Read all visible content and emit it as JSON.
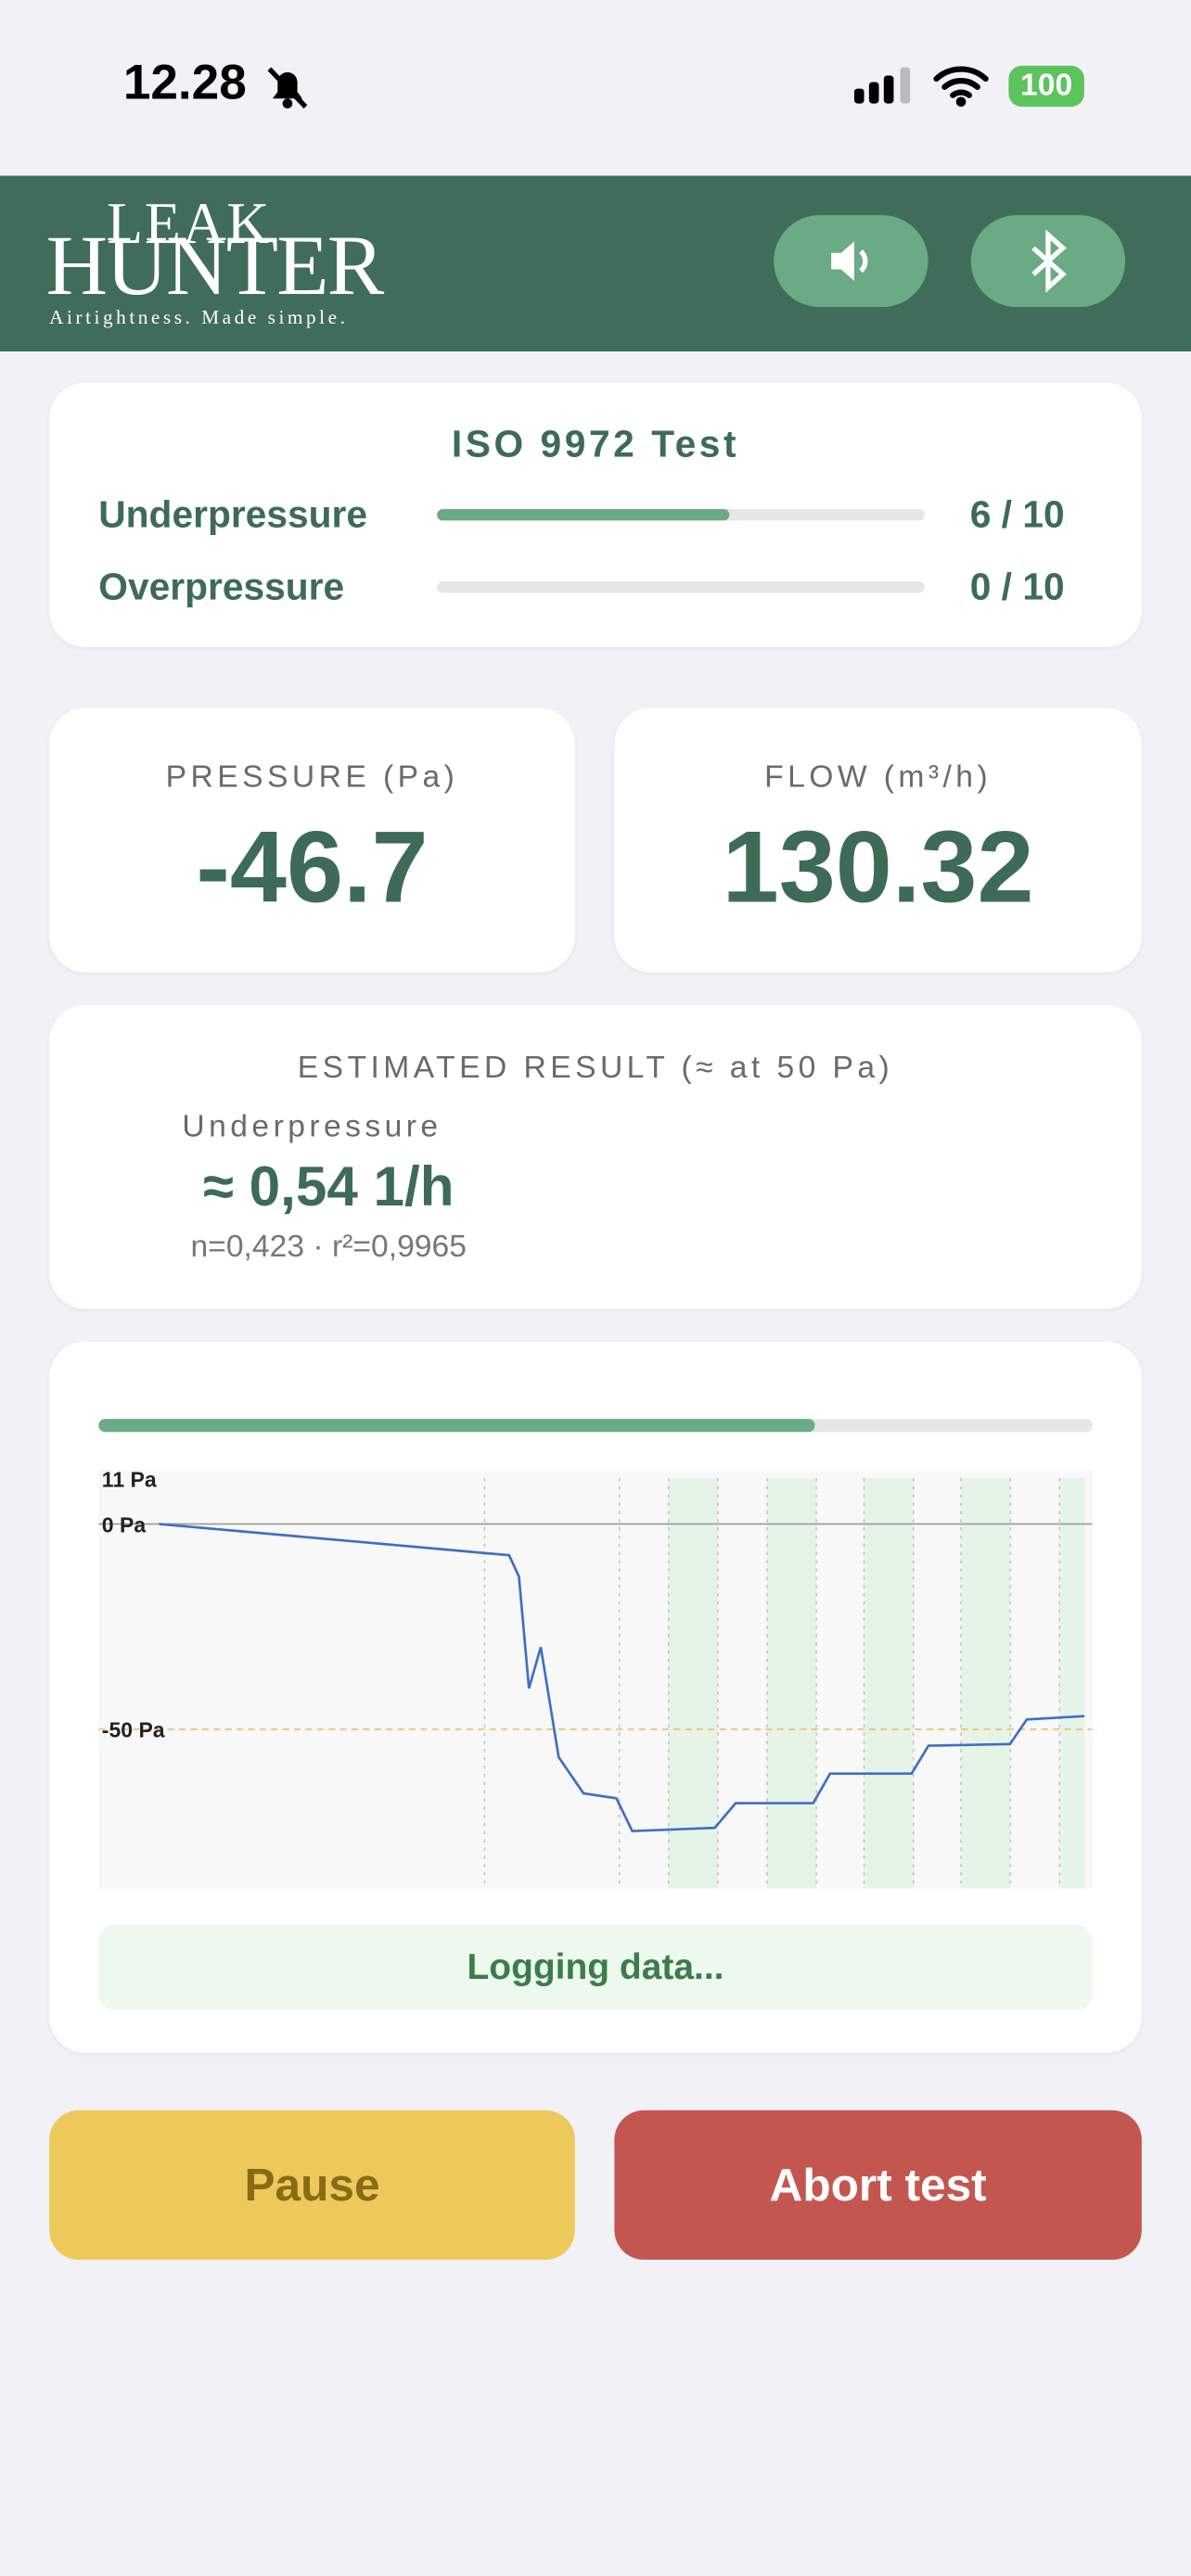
{
  "status_bar": {
    "time": "12.28",
    "battery": "100"
  },
  "header": {
    "logo_top": "LEAK",
    "logo_bottom": "HUNTER",
    "tagline": "Airtightness. Made simple."
  },
  "test": {
    "title": "ISO 9972 Test",
    "stages": [
      {
        "label": "Underpressure",
        "count": "6 / 10",
        "done": 6,
        "total": 10
      },
      {
        "label": "Overpressure",
        "count": "0 / 10",
        "done": 0,
        "total": 10
      }
    ]
  },
  "pressure": {
    "label": "PRESSURE (Pa)",
    "value": "-46.7"
  },
  "flow": {
    "label": "FLOW (m³/h)",
    "value": "130.32"
  },
  "result": {
    "title": "ESTIMATED RESULT (≈ at 50 Pa)",
    "mode": "Underpressure",
    "value": "≈ 0,54 1/h",
    "fit": "n=0,423 · r²=0,9965"
  },
  "chart": {
    "progress": 72,
    "xlim": [
      0,
      100
    ],
    "ylim": [
      -88.8,
      13.2
    ],
    "yticks": [
      {
        "value": 11,
        "label": "11 Pa",
        "line": "none"
      },
      {
        "value": 0,
        "label": "0 Pa",
        "line": "solid"
      },
      {
        "value": -50,
        "label": "-50 Pa",
        "line": "dashed"
      }
    ],
    "x": [
      6.1,
      41.3,
      42.3,
      43.3,
      44.5,
      46.3,
      48.8,
      52.1,
      53.7,
      62,
      64.1,
      71.9,
      73.6,
      81.8,
      83.5,
      91.7,
      93.4,
      99.2
    ],
    "values": [
      0,
      -7.6,
      -12.8,
      -40,
      -30,
      -56.8,
      -65.6,
      -66.8,
      -74.8,
      -74,
      -68,
      -68,
      -60.8,
      -60.8,
      -54,
      -53.6,
      -47.6,
      -46.8
    ],
    "color": "#3f6fc4"
  },
  "status": "Logging data...",
  "buttons": {
    "pause": "Pause",
    "abort": "Abort test"
  }
}
